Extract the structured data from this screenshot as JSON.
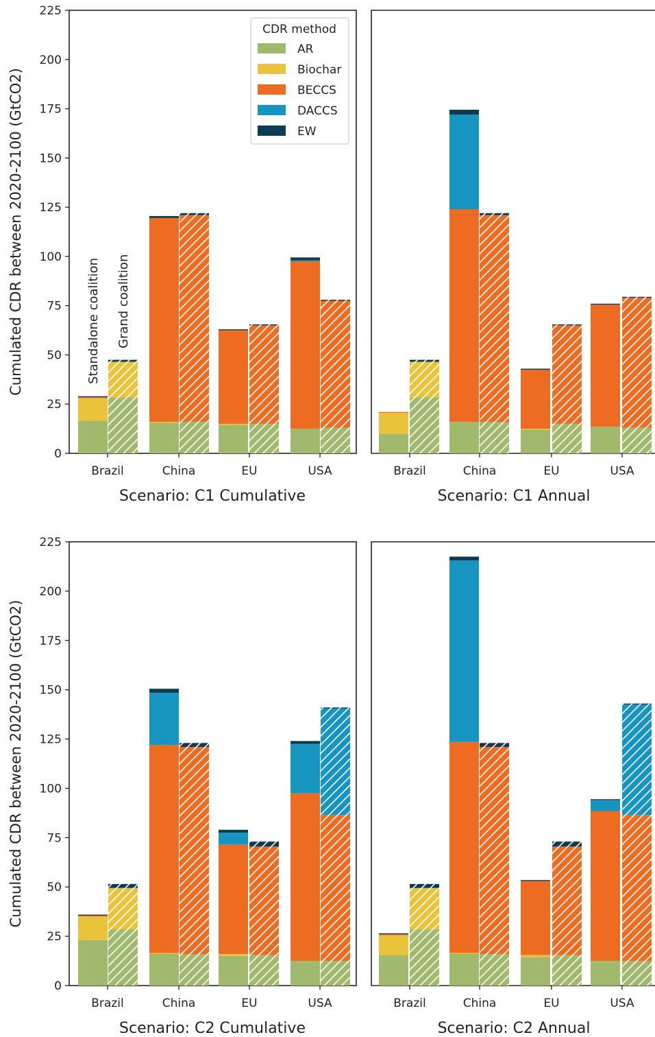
{
  "chart_data": {
    "type": "bar",
    "stacked": true,
    "ylabel": "Cumulated CDR between 2020-2100 (GtCO2)",
    "ylim": [
      0,
      225
    ],
    "yticks": [
      0,
      25,
      50,
      75,
      100,
      125,
      150,
      175,
      200,
      225
    ],
    "categories": [
      "Brazil",
      "China",
      "EU",
      "USA"
    ],
    "bar_variants": [
      "Standalone coalition",
      "Grand coalition"
    ],
    "variant_style": {
      "Standalone coalition": "solid",
      "Grand coalition": "hatched"
    },
    "legend": {
      "title": "CDR method",
      "placement": "top-right of first panel",
      "items": [
        {
          "name": "AR",
          "color": "#a1b96c"
        },
        {
          "name": "Biochar",
          "color": "#e9c43b"
        },
        {
          "name": "BECCS",
          "color": "#ee6c22"
        },
        {
          "name": "DACCS",
          "color": "#1595bf"
        },
        {
          "name": "EW",
          "color": "#0e3a54"
        }
      ]
    },
    "methods": [
      "AR",
      "Biochar",
      "BECCS",
      "DACCS",
      "EW"
    ],
    "panels": [
      {
        "title": "Scenario: C1 Cumulative",
        "show_yaxis": true,
        "annotations": [
          "Standalone coalition",
          "Grand coalition"
        ],
        "bars": {
          "Brazil": {
            "standalone": [
              16.5,
              11.5,
              0.5,
              0,
              0.5
            ],
            "grand": [
              28.5,
              18,
              0,
              0,
              1
            ]
          },
          "China": {
            "standalone": [
              15.5,
              0.5,
              103.5,
              0,
              1
            ],
            "grand": [
              16,
              0,
              105,
              0,
              1
            ]
          },
          "EU": {
            "standalone": [
              14.5,
              0.5,
              47.5,
              0,
              0.5
            ],
            "grand": [
              15,
              0,
              50,
              0,
              0.5
            ]
          },
          "USA": {
            "standalone": [
              12.5,
              0,
              85,
              0.5,
              1.5
            ],
            "grand": [
              13,
              0,
              64.5,
              0,
              0.5
            ]
          }
        }
      },
      {
        "title": "Scenario: C1 Annual",
        "show_yaxis": false,
        "annotations": [],
        "bars": {
          "Brazil": {
            "standalone": [
              10,
              10.5,
              0.5,
              0,
              0
            ],
            "grand": [
              28.5,
              18,
              0,
              0,
              1
            ]
          },
          "China": {
            "standalone": [
              16,
              0,
              108,
              48,
              2.5
            ],
            "grand": [
              16,
              0,
              105,
              0,
              1
            ]
          },
          "EU": {
            "standalone": [
              12,
              0.5,
              30,
              0,
              0.5
            ],
            "grand": [
              15,
              0,
              50,
              0,
              0.5
            ]
          },
          "USA": {
            "standalone": [
              13.5,
              0,
              62,
              0,
              0.5
            ],
            "grand": [
              13,
              0,
              66,
              0,
              0.5
            ]
          }
        }
      },
      {
        "title": "Scenario: C2 Cumulative",
        "show_yaxis": true,
        "annotations": [],
        "bars": {
          "Brazil": {
            "standalone": [
              23,
              12,
              0.5,
              0,
              0.5
            ],
            "grand": [
              28.5,
              21,
              0,
              0,
              2
            ]
          },
          "China": {
            "standalone": [
              16,
              0.5,
              105.5,
              26.5,
              2
            ],
            "grand": [
              16,
              0,
              105,
              0,
              2
            ]
          },
          "EU": {
            "standalone": [
              15,
              1,
              55.5,
              6,
              1.5
            ],
            "grand": [
              15.5,
              0,
              55,
              0,
              2.5
            ]
          },
          "USA": {
            "standalone": [
              12.5,
              0,
              85,
              25,
              1.5
            ],
            "grand": [
              12.5,
              0,
              74,
              54,
              0.5
            ]
          }
        }
      },
      {
        "title": "Scenario: C2 Annual",
        "show_yaxis": false,
        "annotations": [],
        "bars": {
          "Brazil": {
            "standalone": [
              15.5,
              10,
              0.5,
              0,
              0.5
            ],
            "grand": [
              28.5,
              21,
              0,
              0,
              2
            ]
          },
          "China": {
            "standalone": [
              16,
              0.5,
              107,
              92,
              2
            ],
            "grand": [
              16,
              0,
              105,
              0,
              2
            ]
          },
          "EU": {
            "standalone": [
              14.5,
              1,
              37.5,
              0,
              0.5
            ],
            "grand": [
              15.5,
              0,
              55,
              0,
              2.5
            ]
          },
          "USA": {
            "standalone": [
              12.5,
              0,
              76,
              5.5,
              0.5
            ],
            "grand": [
              12.5,
              0,
              74,
              56,
              0.5
            ]
          }
        }
      }
    ]
  }
}
